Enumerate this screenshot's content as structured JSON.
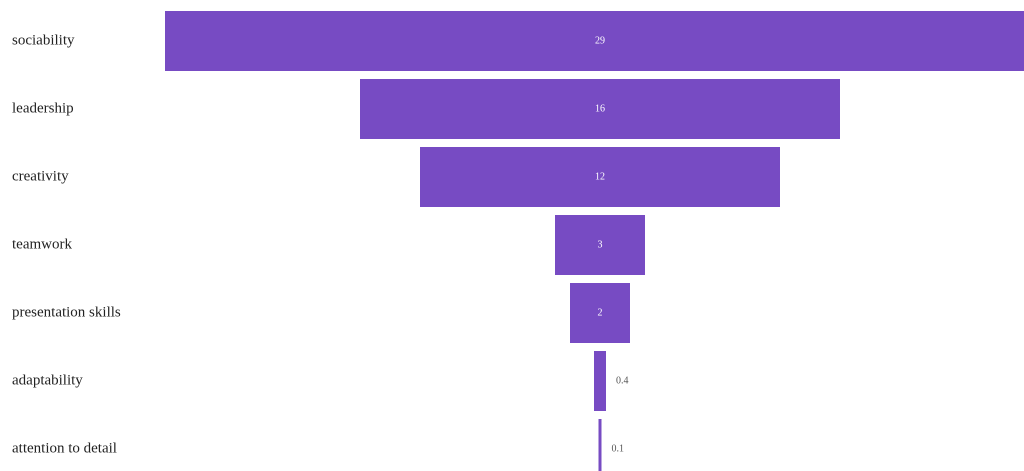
{
  "chart_data": {
    "type": "funnel",
    "categories": [
      "sociability",
      "leadership",
      "creativity",
      "teamwork",
      "presentation skills",
      "adaptability",
      "attention to detail"
    ],
    "values": [
      29,
      16,
      12,
      3,
      2,
      0.4,
      0.1
    ],
    "color": "#774bc3"
  }
}
